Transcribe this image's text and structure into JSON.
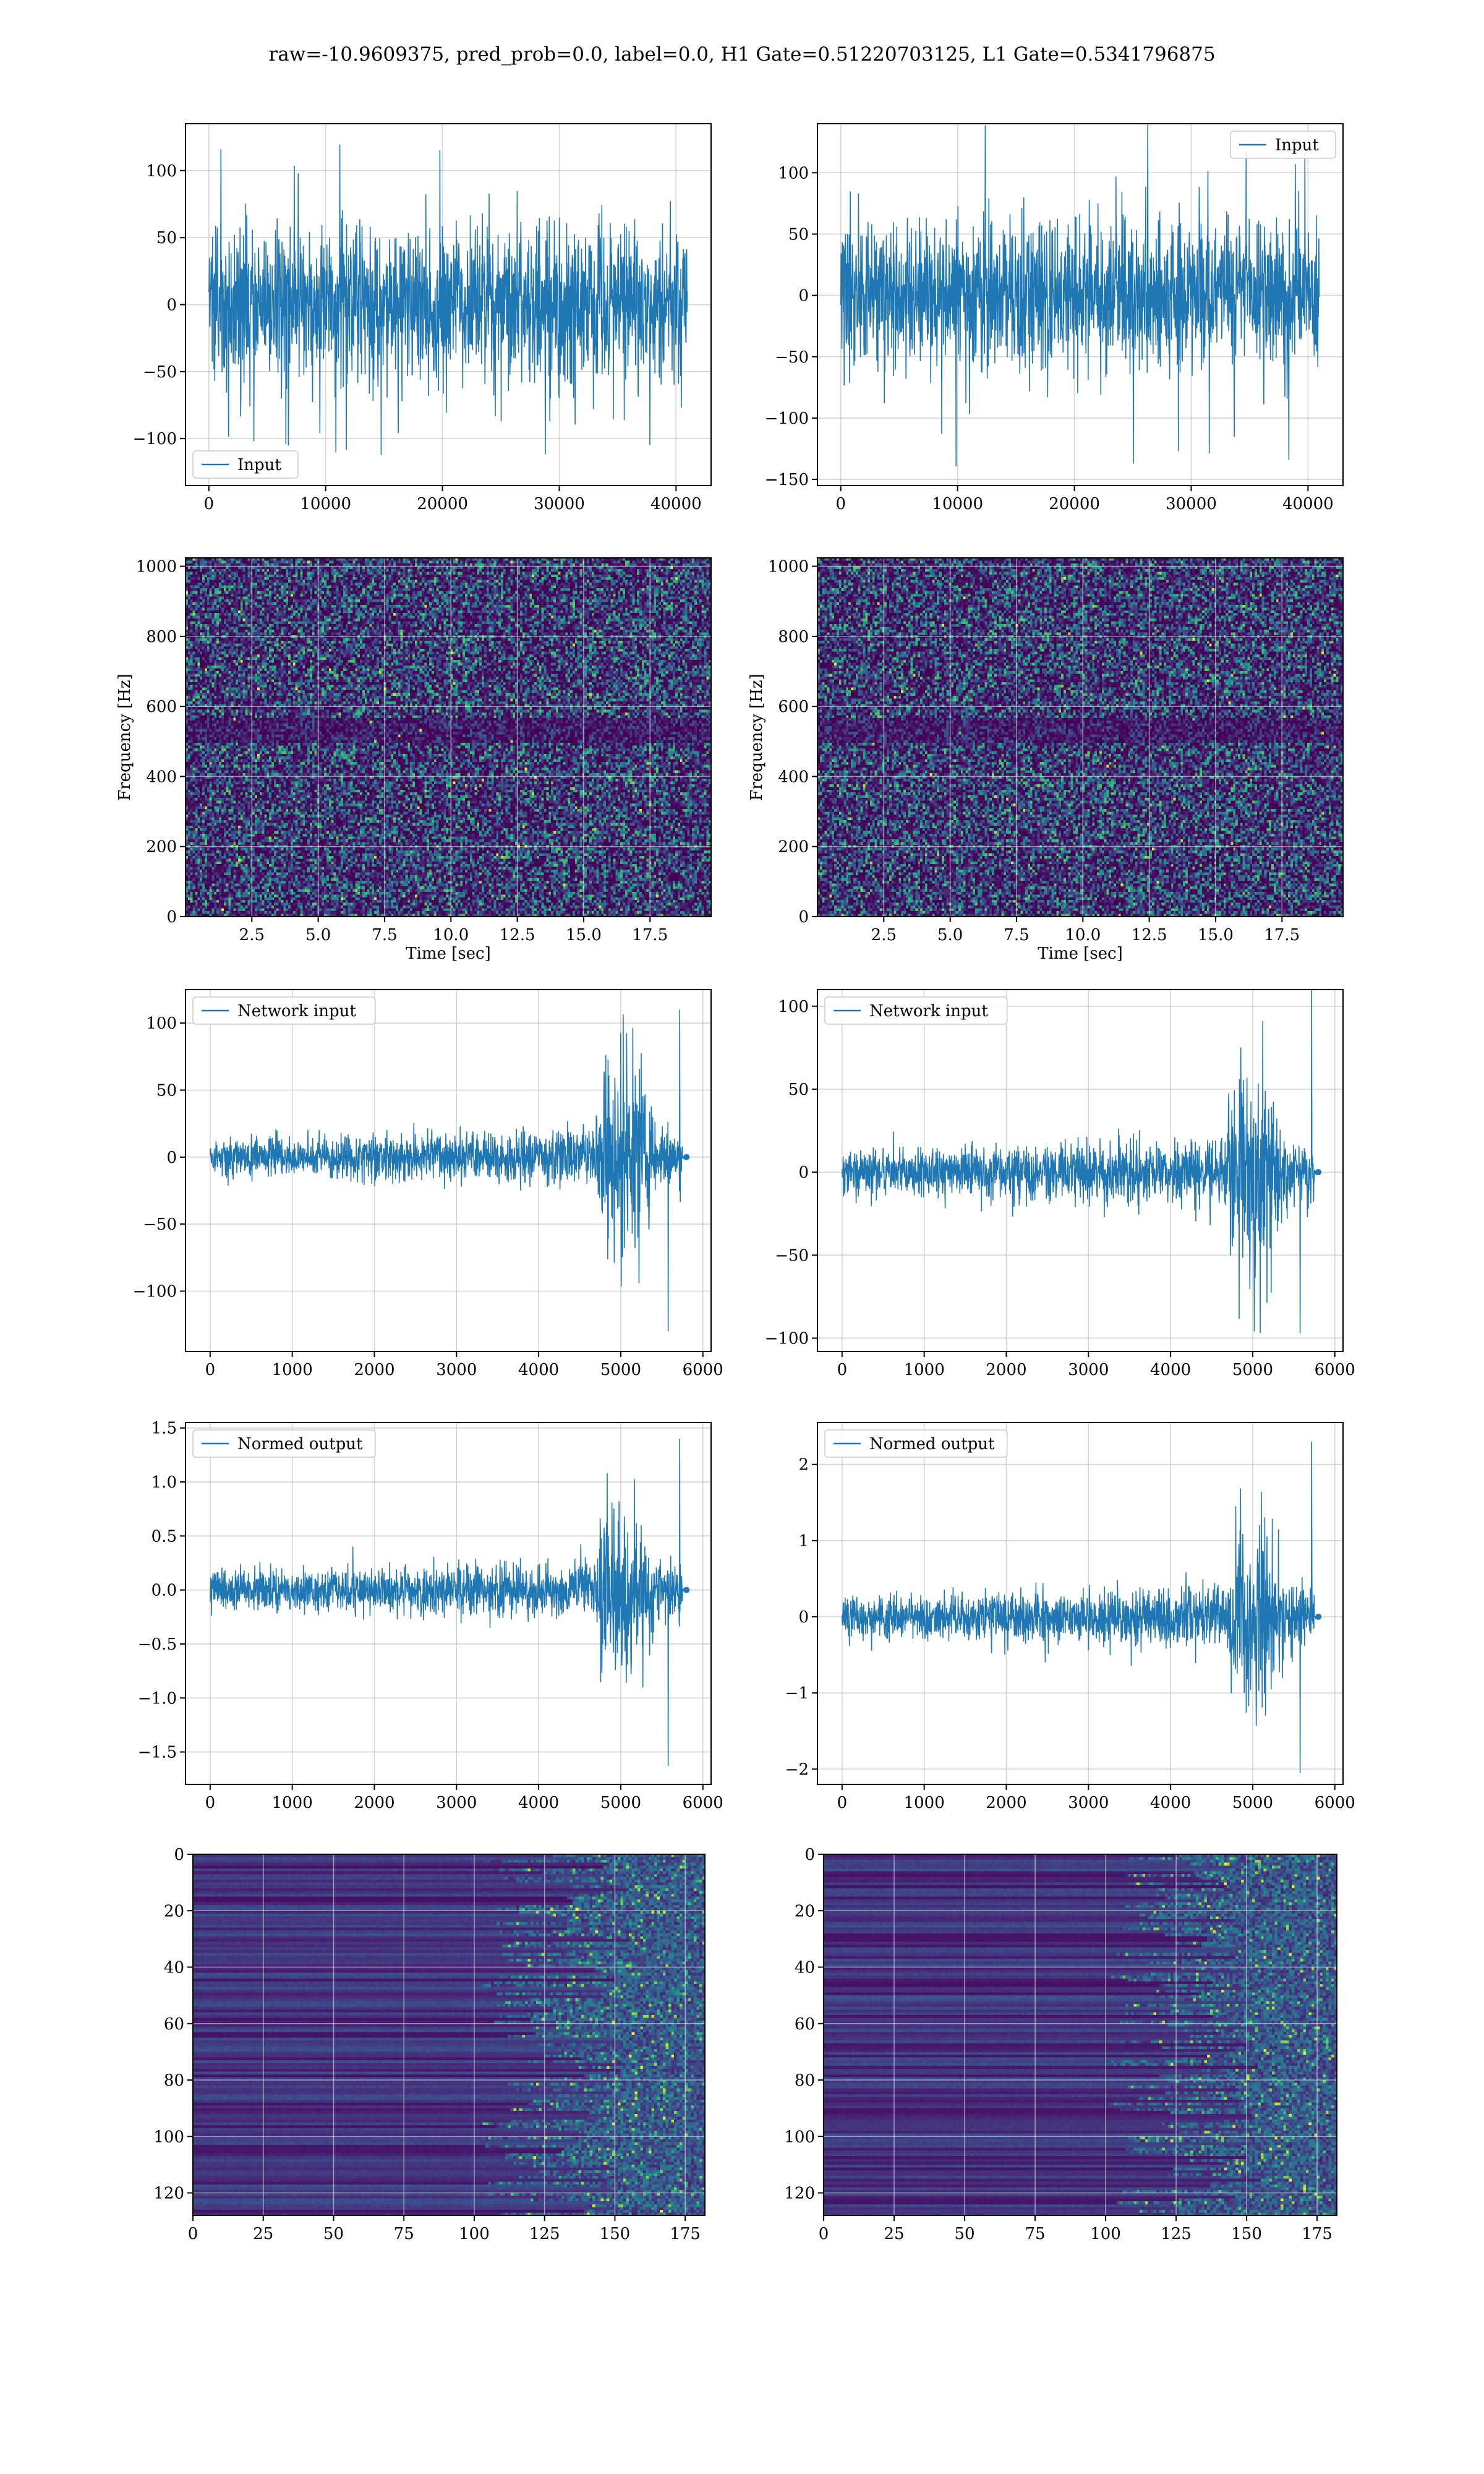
{
  "figure": {
    "suptitle": "raw=-10.9609375, pred_prob=0.0, label=0.0, H1 Gate=0.51220703125, L1 Gate=0.5341796875",
    "colors": {
      "line": "#1f77b4",
      "grid": "#b0b0b0",
      "viridis_low": "#440154",
      "viridis_mid": "#21918c",
      "viridis_high": "#fde725"
    }
  },
  "chart_data": [
    {
      "id": "r0c0",
      "type": "line",
      "legend": {
        "label": "Input",
        "loc": "lower-left"
      },
      "xlim": [
        -2000,
        43000
      ],
      "ylim": [
        -135,
        135
      ],
      "xticks": [
        0,
        10000,
        20000,
        30000,
        40000
      ],
      "xtick_labels": [
        "0",
        "10000",
        "20000",
        "30000",
        "40000"
      ],
      "yticks": [
        -100,
        -50,
        0,
        50,
        100
      ],
      "ytick_labels": [
        "−100",
        "−50",
        "0",
        "50",
        "100"
      ],
      "x_range": [
        0,
        40960
      ],
      "amplitude": 70,
      "peak": 125,
      "grid": true
    },
    {
      "id": "r0c1",
      "type": "line",
      "legend": {
        "label": "Input",
        "loc": "upper-right"
      },
      "xlim": [
        -2000,
        43000
      ],
      "ylim": [
        -155,
        140
      ],
      "xticks": [
        0,
        10000,
        20000,
        30000,
        40000
      ],
      "xtick_labels": [
        "0",
        "10000",
        "20000",
        "30000",
        "40000"
      ],
      "yticks": [
        -150,
        -100,
        -50,
        0,
        50,
        100
      ],
      "ytick_labels": [
        "−150",
        "−100",
        "−50",
        "0",
        "50",
        "100"
      ],
      "x_range": [
        0,
        40960
      ],
      "amplitude": 70,
      "peak": 140,
      "grid": true
    },
    {
      "id": "r1c0",
      "type": "heatmap",
      "xlabel": "Time [sec]",
      "ylabel": "Frequency [Hz]",
      "xlim": [
        0,
        19.8
      ],
      "ylim": [
        0,
        1024
      ],
      "xticks": [
        2.5,
        5.0,
        7.5,
        10.0,
        12.5,
        15.0,
        17.5
      ],
      "xtick_labels": [
        "2.5",
        "5.0",
        "7.5",
        "10.0",
        "12.5",
        "15.0",
        "17.5"
      ],
      "yticks": [
        0,
        200,
        400,
        600,
        800,
        1000
      ],
      "ytick_labels": [
        "0",
        "200",
        "400",
        "600",
        "800",
        "1000"
      ],
      "colormap": "viridis",
      "grid": true
    },
    {
      "id": "r1c1",
      "type": "heatmap",
      "xlabel": "Time [sec]",
      "ylabel": "Frequency [Hz]",
      "xlim": [
        0,
        19.8
      ],
      "ylim": [
        0,
        1024
      ],
      "xticks": [
        2.5,
        5.0,
        7.5,
        10.0,
        12.5,
        15.0,
        17.5
      ],
      "xtick_labels": [
        "2.5",
        "5.0",
        "7.5",
        "10.0",
        "12.5",
        "15.0",
        "17.5"
      ],
      "yticks": [
        0,
        200,
        400,
        600,
        800,
        1000
      ],
      "ytick_labels": [
        "0",
        "200",
        "400",
        "600",
        "800",
        "1000"
      ],
      "colormap": "viridis",
      "grid": true
    },
    {
      "id": "r2c0",
      "type": "line",
      "legend": {
        "label": "Network input",
        "loc": "upper-left"
      },
      "xlim": [
        -300,
        6100
      ],
      "ylim": [
        -145,
        125
      ],
      "xticks": [
        0,
        1000,
        2000,
        3000,
        4000,
        5000,
        6000
      ],
      "xtick_labels": [
        "0",
        "1000",
        "2000",
        "3000",
        "4000",
        "5000",
        "6000"
      ],
      "yticks": [
        -100,
        -50,
        0,
        50,
        100
      ],
      "ytick_labels": [
        "−100",
        "−50",
        "0",
        "50",
        "100"
      ],
      "x_range": [
        0,
        5800
      ],
      "base_amplitude": 16,
      "burst_start": 4700,
      "burst_end": 5750,
      "burst_amplitude": 60,
      "peak": 110,
      "trough": -130,
      "grid": true
    },
    {
      "id": "r2c1",
      "type": "line",
      "legend": {
        "label": "Network input",
        "loc": "upper-left"
      },
      "xlim": [
        -300,
        6100
      ],
      "ylim": [
        -108,
        110
      ],
      "xticks": [
        0,
        1000,
        2000,
        3000,
        4000,
        5000,
        6000
      ],
      "xtick_labels": [
        "0",
        "1000",
        "2000",
        "3000",
        "4000",
        "5000",
        "6000"
      ],
      "yticks": [
        -100,
        -50,
        0,
        50,
        100
      ],
      "ytick_labels": [
        "−100",
        "−50",
        "0",
        "50",
        "100"
      ],
      "x_range": [
        0,
        5800
      ],
      "base_amplitude": 15,
      "burst_start": 4700,
      "burst_end": 5750,
      "burst_amplitude": 55,
      "peak": 110,
      "trough": -97,
      "grid": true
    },
    {
      "id": "r3c0",
      "type": "line",
      "legend": {
        "label": "Normed output",
        "loc": "upper-left"
      },
      "xlim": [
        -300,
        6100
      ],
      "ylim": [
        -1.8,
        1.55
      ],
      "xticks": [
        0,
        1000,
        2000,
        3000,
        4000,
        5000,
        6000
      ],
      "xtick_labels": [
        "0",
        "1000",
        "2000",
        "3000",
        "4000",
        "5000",
        "6000"
      ],
      "yticks": [
        -1.5,
        -1.0,
        -0.5,
        0.0,
        0.5,
        1.0,
        1.5
      ],
      "ytick_labels": [
        "−1.5",
        "−1.0",
        "−0.5",
        "0.0",
        "0.5",
        "1.0",
        "1.5"
      ],
      "x_range": [
        0,
        5800
      ],
      "base_amplitude": 0.2,
      "burst_start": 4700,
      "burst_end": 5750,
      "burst_amplitude": 0.75,
      "peak": 1.4,
      "trough": -1.63,
      "grid": true
    },
    {
      "id": "r3c1",
      "type": "line",
      "legend": {
        "label": "Normed output",
        "loc": "upper-left"
      },
      "xlim": [
        -300,
        6100
      ],
      "ylim": [
        -2.2,
        2.55
      ],
      "xticks": [
        0,
        1000,
        2000,
        3000,
        4000,
        5000,
        6000
      ],
      "xtick_labels": [
        "0",
        "1000",
        "2000",
        "3000",
        "4000",
        "5000",
        "6000"
      ],
      "yticks": [
        -2,
        -1,
        0,
        1,
        2
      ],
      "ytick_labels": [
        "−2",
        "−1",
        "0",
        "1",
        "2"
      ],
      "x_range": [
        0,
        5800
      ],
      "base_amplitude": 0.3,
      "burst_start": 4700,
      "burst_end": 5750,
      "burst_amplitude": 1.1,
      "peak": 2.3,
      "trough": -2.05,
      "grid": true
    },
    {
      "id": "r4c0",
      "type": "heatmap",
      "xlim": [
        0,
        182
      ],
      "ylim": [
        128,
        0
      ],
      "xticks": [
        0,
        25,
        50,
        75,
        100,
        125,
        150,
        175
      ],
      "xtick_labels": [
        "0",
        "25",
        "50",
        "75",
        "100",
        "125",
        "150",
        "175"
      ],
      "yticks": [
        0,
        20,
        40,
        60,
        80,
        100,
        120
      ],
      "ytick_labels": [
        "0",
        "20",
        "40",
        "60",
        "80",
        "100",
        "120"
      ],
      "colormap": "viridis",
      "grid": true,
      "rows": 128,
      "cols": 182
    },
    {
      "id": "r4c1",
      "type": "heatmap",
      "xlim": [
        0,
        182
      ],
      "ylim": [
        128,
        0
      ],
      "xticks": [
        0,
        25,
        50,
        75,
        100,
        125,
        150,
        175
      ],
      "xtick_labels": [
        "0",
        "25",
        "50",
        "75",
        "100",
        "125",
        "150",
        "175"
      ],
      "yticks": [
        0,
        20,
        40,
        60,
        80,
        100,
        120
      ],
      "ytick_labels": [
        "0",
        "20",
        "40",
        "60",
        "80",
        "100",
        "120"
      ],
      "colormap": "viridis",
      "grid": true,
      "rows": 128,
      "cols": 182
    }
  ]
}
